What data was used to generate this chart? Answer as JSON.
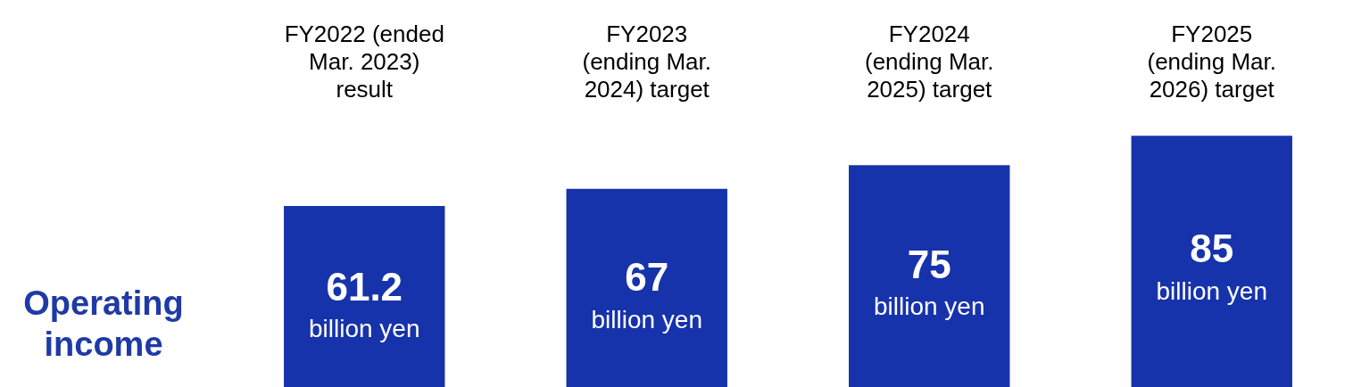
{
  "chart_data": {
    "type": "bar",
    "ylabel": "Operating income",
    "categories": [
      "FY2022 (ended Mar. 2023) result",
      "FY2023 (ending Mar. 2024) target",
      "FY2024 (ending Mar. 2025) target",
      "FY2025 (ending Mar. 2026) target"
    ],
    "values": [
      61.2,
      67,
      75,
      85
    ],
    "value_labels": [
      "61.2 billion yen",
      "67 billion yen",
      "75 billion yen",
      "85 billion yen"
    ],
    "color": "#1733ab",
    "grid": false,
    "legend": false
  }
}
